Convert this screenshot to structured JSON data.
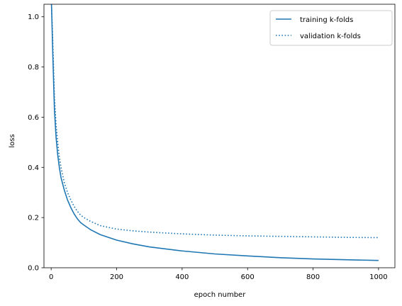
{
  "chart_data": {
    "type": "line",
    "title": "",
    "xlabel": "epoch number",
    "ylabel": "loss",
    "xlim": [
      -22,
      1050
    ],
    "ylim": [
      0,
      1.05
    ],
    "xticks": [
      0,
      200,
      400,
      600,
      800,
      1000
    ],
    "yticks": [
      0.0,
      0.2,
      0.4,
      0.6,
      0.8,
      1.0
    ],
    "xtick_labels": [
      "0",
      "200",
      "400",
      "600",
      "800",
      "1000"
    ],
    "ytick_labels": [
      "0.0",
      "0.2",
      "0.4",
      "0.6",
      "0.8",
      "1.0"
    ],
    "grid": false,
    "legend_position": "upper-right",
    "series": [
      {
        "name": "training k-folds",
        "style": "solid",
        "color": "#1f77b4",
        "x": [
          1,
          5,
          10,
          15,
          20,
          25,
          30,
          40,
          50,
          60,
          70,
          80,
          90,
          100,
          120,
          150,
          200,
          250,
          300,
          400,
          500,
          600,
          700,
          800,
          900,
          1000
        ],
        "y": [
          1.05,
          0.85,
          0.63,
          0.52,
          0.45,
          0.4,
          0.36,
          0.31,
          0.27,
          0.24,
          0.215,
          0.195,
          0.18,
          0.17,
          0.152,
          0.132,
          0.11,
          0.095,
          0.083,
          0.067,
          0.055,
          0.047,
          0.04,
          0.035,
          0.032,
          0.029
        ]
      },
      {
        "name": "validation k-folds",
        "style": "dotted",
        "color": "#1f77b4",
        "x": [
          1,
          5,
          10,
          15,
          20,
          25,
          30,
          40,
          50,
          60,
          70,
          80,
          90,
          100,
          120,
          150,
          200,
          250,
          300,
          400,
          500,
          600,
          700,
          800,
          900,
          1000
        ],
        "y": [
          1.05,
          0.9,
          0.68,
          0.57,
          0.5,
          0.44,
          0.4,
          0.34,
          0.3,
          0.27,
          0.245,
          0.225,
          0.21,
          0.2,
          0.185,
          0.168,
          0.154,
          0.147,
          0.142,
          0.135,
          0.13,
          0.127,
          0.125,
          0.123,
          0.121,
          0.12
        ]
      }
    ]
  }
}
